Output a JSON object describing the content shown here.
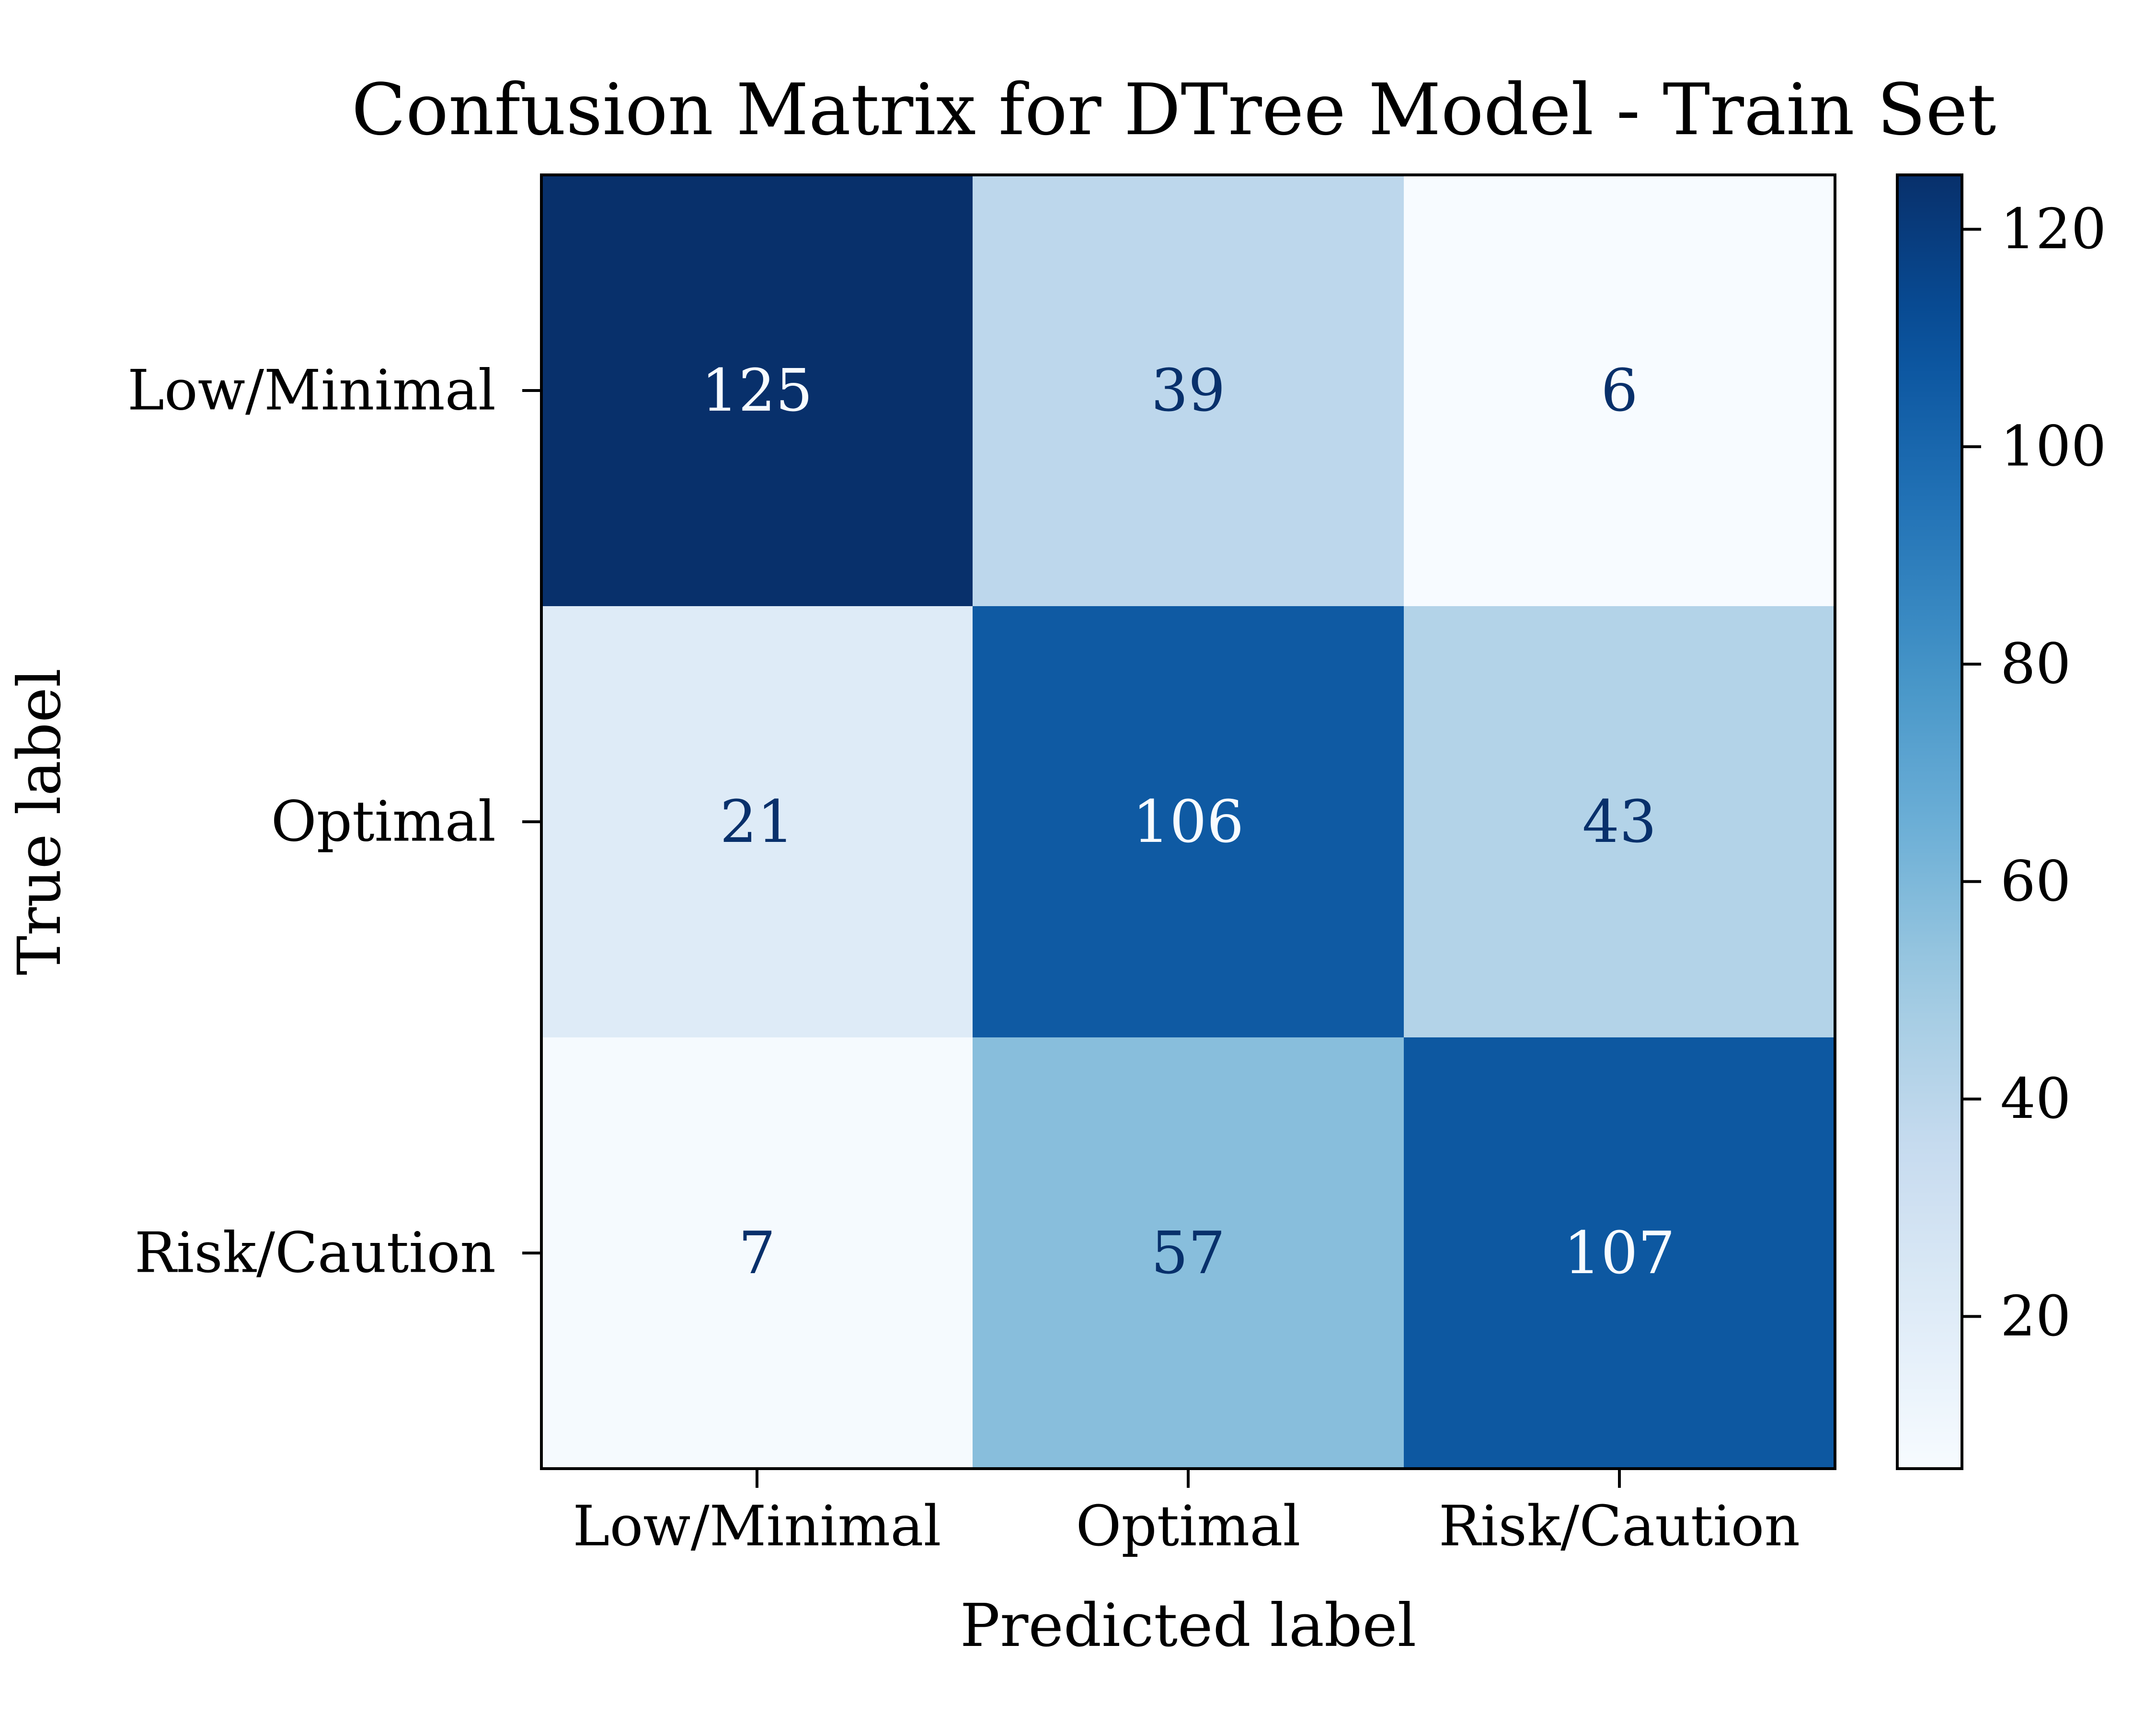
{
  "chart_data": {
    "type": "heatmap",
    "title": "Confusion Matrix for DTree Model - Train Set",
    "xlabel": "Predicted label",
    "ylabel": "True label",
    "x_categories": [
      "Low/Minimal",
      "Optimal",
      "Risk/Caution"
    ],
    "y_categories": [
      "Low/Minimal",
      "Optimal",
      "Risk/Caution"
    ],
    "values": [
      [
        125,
        39,
        6
      ],
      [
        21,
        106,
        43
      ],
      [
        7,
        57,
        107
      ]
    ],
    "colormap": "Blues",
    "colorbar": {
      "range": [
        6,
        125
      ],
      "ticks": [
        20,
        40,
        60,
        80,
        100,
        120
      ]
    }
  }
}
